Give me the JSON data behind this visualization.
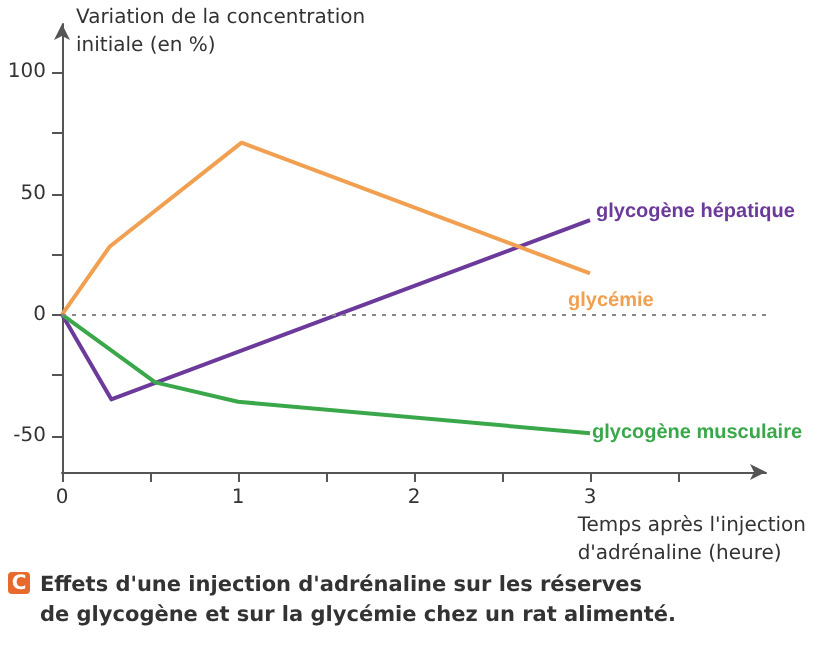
{
  "chart_data": {
    "type": "line",
    "xlabel": "Temps après l'injection\nd'adrénaline (heure)",
    "ylabel": "Variation de la concentration\ninitiale (en %)",
    "series": [
      {
        "name": "glycogène hépatique",
        "color": "#6b3a9a",
        "x": [
          0,
          0.28,
          3
        ],
        "values": [
          0,
          -35,
          39
        ]
      },
      {
        "name": "glycémie",
        "color": "#f0a050",
        "x": [
          0,
          0.27,
          1.02,
          3
        ],
        "values": [
          0,
          28,
          71,
          17
        ]
      },
      {
        "name": "glycogène musculaire",
        "color": "#3aa84a",
        "x": [
          0,
          0.53,
          1,
          3
        ],
        "values": [
          0,
          -28,
          -36,
          -49
        ]
      }
    ],
    "xlim": [
      0,
      4
    ],
    "ylim": [
      -65,
      120
    ],
    "xticks": [
      0,
      {
        "value": 0.5,
        "label": null
      },
      1,
      {
        "value": 1.5,
        "label": null
      },
      2,
      {
        "value": 2.5,
        "label": null
      },
      3,
      {
        "value": 3.5,
        "label": null
      }
    ],
    "yticks": [
      -50,
      {
        "value": -25,
        "label": null
      },
      0,
      {
        "value": 25,
        "label": null
      },
      50,
      {
        "value": 75,
        "label": null
      },
      100
    ],
    "ref_lines": [
      {
        "axis": "y",
        "value": 0,
        "color": "#888888",
        "line_style": "dotted"
      }
    ],
    "annotations": [
      "C",
      "Effets d'une injection d'adrénaline sur les réserves\nde glycogène et sur la glycémie chez un rat alimenté."
    ],
    "grid": false,
    "legend": false,
    "marker": "none",
    "line_style": "solid"
  }
}
